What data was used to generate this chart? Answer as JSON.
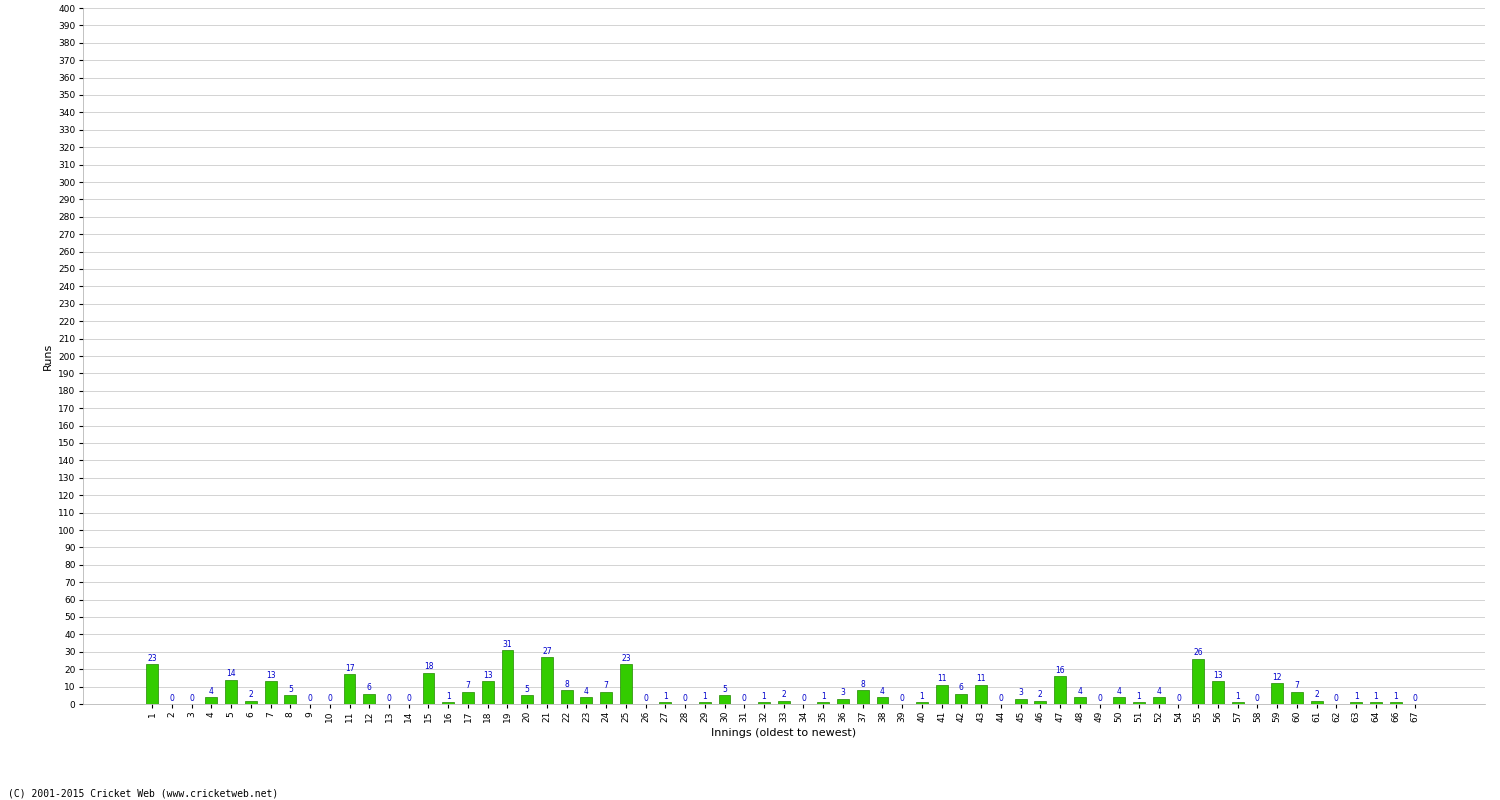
{
  "values": [
    23,
    0,
    0,
    4,
    14,
    2,
    13,
    5,
    0,
    0,
    17,
    6,
    0,
    0,
    18,
    1,
    7,
    13,
    31,
    5,
    27,
    8,
    4,
    7,
    23,
    0,
    1,
    0,
    1,
    5,
    0,
    1,
    2,
    0,
    1,
    3,
    8,
    4,
    0,
    1,
    11,
    6,
    11,
    0,
    3,
    2,
    16,
    4,
    0,
    4,
    1,
    4,
    0,
    26,
    13,
    1,
    0,
    12,
    7,
    2,
    0,
    1,
    1,
    1,
    0
  ],
  "x_labels": [
    "1",
    "2",
    "3",
    "4",
    "5",
    "6",
    "7",
    "8",
    "9",
    "10",
    "11",
    "12",
    "13",
    "14",
    "15",
    "16",
    "17",
    "18",
    "19",
    "20",
    "21",
    "22",
    "23",
    "24",
    "25",
    "26",
    "27",
    "28",
    "29",
    "30",
    "31",
    "32",
    "33",
    "34",
    "35",
    "36",
    "37",
    "38",
    "39",
    "40",
    "41",
    "42",
    "43",
    "44",
    "45",
    "46",
    "47",
    "48",
    "49",
    "50",
    "51",
    "52",
    "54",
    "55",
    "56",
    "57",
    "58",
    "59",
    "60",
    "61",
    "62",
    "63",
    "64",
    "66",
    "67"
  ],
  "bar_color": "#33cc00",
  "bar_edge_color": "#228800",
  "label_color": "#0000cc",
  "ylabel": "Runs",
  "xlabel": "Innings (oldest to newest)",
  "ylim": [
    0,
    400
  ],
  "background_color": "#ffffff",
  "grid_color": "#cccccc",
  "footer": "(C) 2001-2015 Cricket Web (www.cricketweb.net)"
}
